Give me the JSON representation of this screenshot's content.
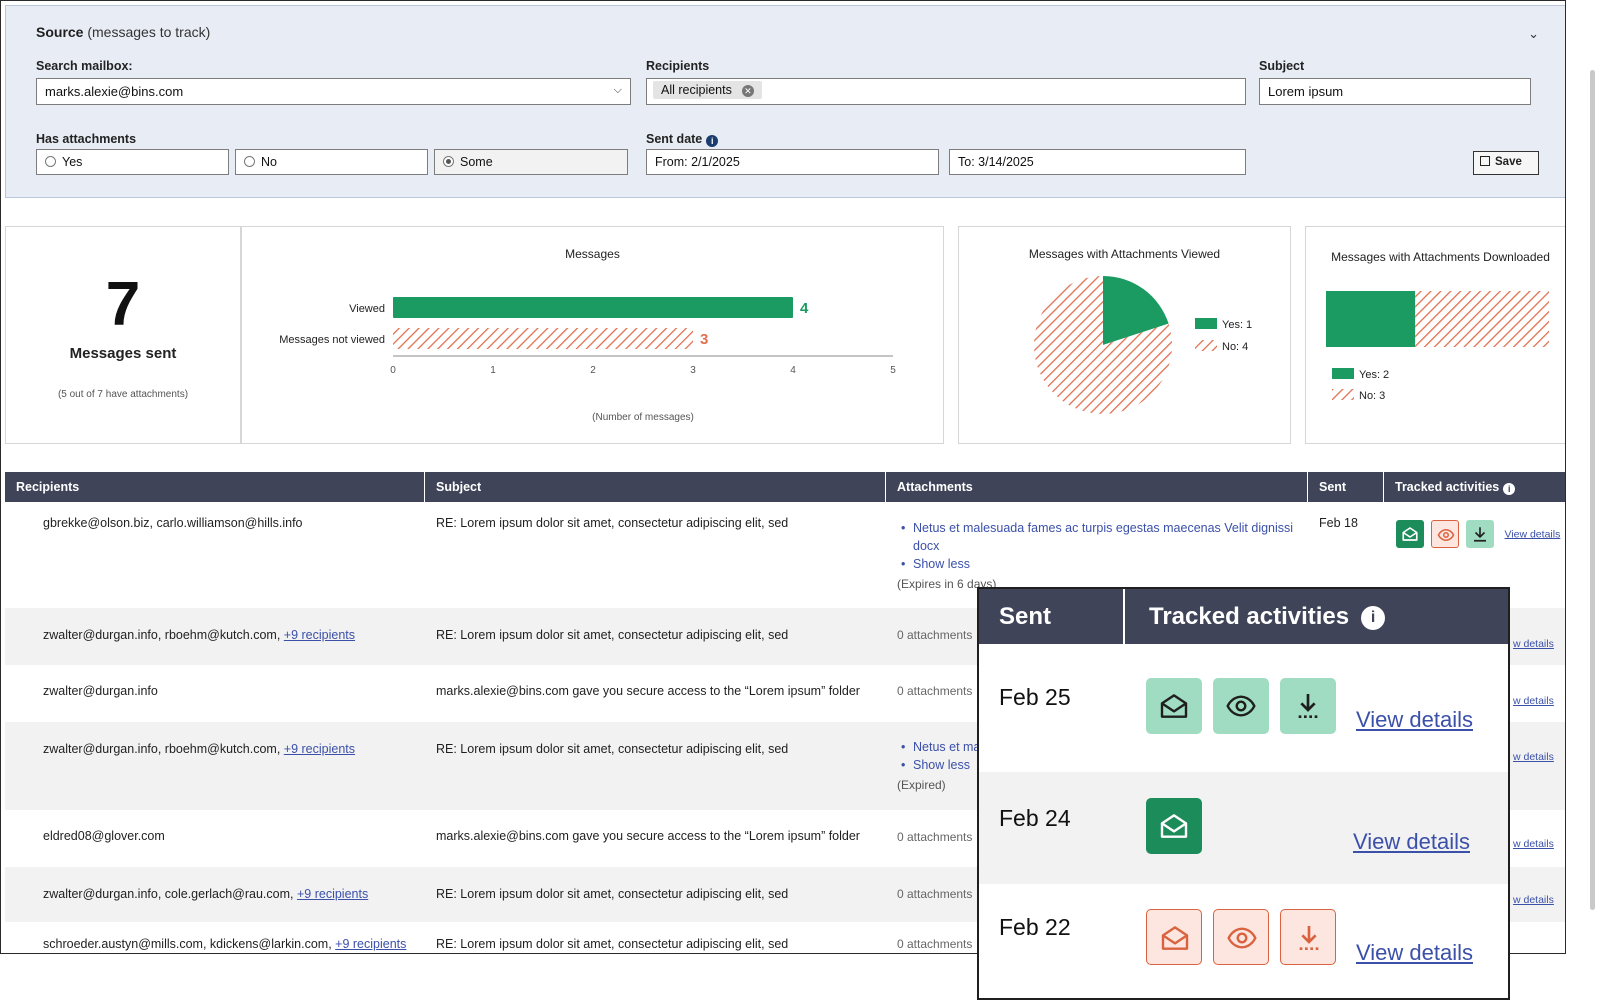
{
  "source": {
    "title_bold": "Source",
    "title_rest": "(messages to track)",
    "collapse_icon": "chevron-down-icon",
    "search_mailbox_label": "Search mailbox:",
    "search_mailbox_value": "marks.alexie@bins.com",
    "recipients_label": "Recipients",
    "recipients_chip": "All recipients",
    "subject_label": "Subject",
    "subject_value": "Lorem ipsum",
    "has_attachments_label": "Has attachments",
    "attach_options": [
      "Yes",
      "No",
      "Some"
    ],
    "attach_selected": "Some",
    "sent_date_label": "Sent date",
    "from_value": "From: 2/1/2025",
    "to_value": "To: 3/14/2025",
    "save_label": "Save"
  },
  "summary": {
    "count": "7",
    "label": "Messages sent",
    "sub": "(5 out of 7 have attachments)"
  },
  "chart_data": [
    {
      "type": "bar",
      "orientation": "horizontal",
      "title": "Messages",
      "categories": [
        "Viewed",
        "Messages not viewed"
      ],
      "values": [
        4,
        3
      ],
      "xlabel": "(Number of messages)",
      "xlim": [
        0,
        5
      ],
      "xticks": [
        0,
        1,
        2,
        3,
        4,
        5
      ],
      "colors": [
        "#1b9a62",
        "#e0704f"
      ]
    },
    {
      "type": "pie",
      "title": "Messages with Attachments Viewed",
      "labels": [
        "Yes",
        "No"
      ],
      "values": [
        1,
        4
      ],
      "legend": [
        "Yes: 1",
        "No: 4"
      ],
      "legend_position": "right",
      "colors": [
        "#1b9a62",
        "#e0704f"
      ]
    },
    {
      "type": "bar",
      "orientation": "horizontal-stacked",
      "title": "Messages with Attachments Downloaded",
      "labels": [
        "Yes",
        "No"
      ],
      "values": [
        2,
        3
      ],
      "legend": [
        "Yes: 2",
        "No: 3"
      ],
      "legend_position": "bottom",
      "colors": [
        "#1b9a62",
        "#e0704f"
      ]
    }
  ],
  "table": {
    "headers": [
      "Recipients",
      "Subject",
      "Attachments",
      "Sent",
      "Tracked activities"
    ],
    "rows": [
      {
        "recipients": "gbrekke@olson.biz, carlo.williamson@hills.info",
        "more": "",
        "subject": "RE: Lorem ipsum dolor sit amet, consectetur adipiscing elit, sed",
        "attachments": [
          "Netus et malesuada fames ac turpis egestas maecenas Velit dignissi docx",
          "Show less"
        ],
        "expires": "(Expires in 6 days)",
        "sent": "Feb 18",
        "view": "View details"
      },
      {
        "recipients": "zwalter@durgan.info, rboehm@kutch.com,",
        "more": "+9 recipients",
        "subject": "RE: Lorem ipsum dolor sit amet, consectetur adipiscing elit, sed",
        "attachments_text": "0 attachments",
        "view": "View details"
      },
      {
        "recipients": "zwalter@durgan.info",
        "more": "",
        "subject": "marks.alexie@bins.com gave you secure access to the “Lorem ipsum” folder",
        "attachments_text": "0 attachments",
        "view": "View details"
      },
      {
        "recipients": "zwalter@durgan.info, rboehm@kutch.com,",
        "more": "+9 recipients",
        "subject": "RE: Lorem ipsum dolor sit amet, consectetur adipiscing elit, sed",
        "attachments": [
          "Netus et ma",
          "Show less"
        ],
        "expires": "(Expired)",
        "view": "View details"
      },
      {
        "recipients": "eldred08@glover.com",
        "more": "",
        "subject": "marks.alexie@bins.com gave you secure access to the “Lorem ipsum” folder",
        "attachments_text": "0 attachments",
        "view": "View details"
      },
      {
        "recipients": "zwalter@durgan.info, cole.gerlach@rau.com,",
        "more": "+9 recipients",
        "subject": "RE: Lorem ipsum dolor sit amet, consectetur adipiscing elit, sed",
        "attachments_text": "0 attachments",
        "view": "View details"
      },
      {
        "recipients": "schroeder.austyn@mills.com, kdickens@larkin.com,",
        "more": "+9 recipients",
        "subject": "RE: Lorem ipsum dolor sit amet, consectetur adipiscing elit, sed",
        "attachments_text": "0 attachments"
      }
    ]
  },
  "zoom": {
    "headers": [
      "Sent",
      "Tracked activities"
    ],
    "rows": [
      {
        "date": "Feb 25",
        "view": "View details",
        "icons": [
          "envelope-open-icon",
          "eye-icon",
          "download-icon"
        ],
        "state": "viewed-light"
      },
      {
        "date": "Feb 24",
        "view": "View details",
        "icons": [
          "envelope-open-icon"
        ],
        "state": "viewed-dark"
      },
      {
        "date": "Feb 22",
        "view": "View details",
        "icons": [
          "envelope-open-icon",
          "eye-icon",
          "download-icon"
        ],
        "state": "not-viewed"
      }
    ]
  }
}
